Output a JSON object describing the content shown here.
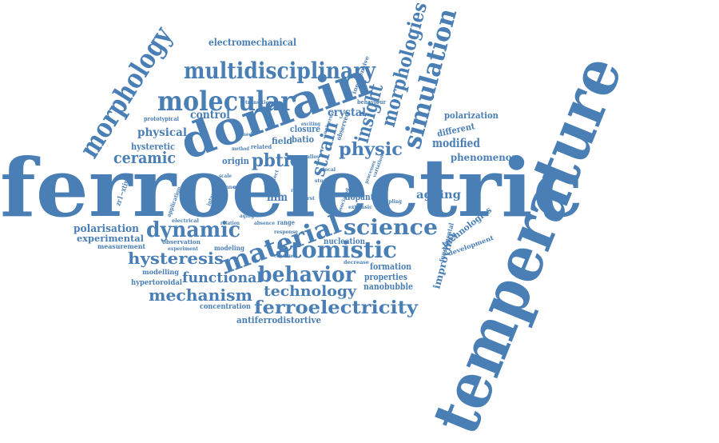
{
  "colors": {
    "word": "#4a7fb6",
    "background": "#ffffff"
  },
  "words": {
    "ferroelectric": "ferroelectric",
    "temperature": "temperature",
    "domain": "domain",
    "molecular": "molecular",
    "multidisciplinary": "multidisciplinary",
    "morphology": "morphology",
    "simulation": "simulation",
    "morphologies": "morphologies",
    "insight": "insight",
    "strain": "strain",
    "physic": "physic",
    "material": "material",
    "dynamic": "dynamic",
    "atomistic": "atomistic",
    "science": "science",
    "behavior": "behavior",
    "technology": "technology",
    "ferroelectricity": "ferroelectricity",
    "mechanism": "mechanism",
    "functional": "functional",
    "hysteresis": "hysteresis",
    "ceramic": "ceramic",
    "pbtio": "pbtio",
    "physical": "physical",
    "control": "control",
    "electromechanical": "electromechanical",
    "polarization": "polarization",
    "different": "different",
    "modified": "modified",
    "phenomenon": "phenomenon",
    "ageing": "ageing",
    "dopant": "dopant",
    "film": "film",
    "field": "field",
    "crystal": "crystal",
    "closure": "closure",
    "batio": "batio",
    "hysteretic": "hysteretic",
    "origin": "origin",
    "polarisation": "polarisation",
    "experimental": "experimental",
    "measurement": "measurement",
    "modelling": "modelling",
    "hypertoroidal": "hypertoroidal",
    "concentration": "concentration",
    "antiferrodistortive": "antiferrodistortive",
    "nanobubble": "nanobubble",
    "properties": "properties",
    "formation": "formation",
    "nucleation": "nucleation",
    "improving": "improving",
    "technologies": "technologies",
    "development": "development",
    "fundamental": "fundamental",
    "prototypical": "prototypical",
    "zr1_xtixo": "zr1−xtixo",
    "inexpensive": "inexpensive",
    "observed": "observed",
    "behaviour": "behaviour",
    "transition": "transition",
    "observation": "observation",
    "modeling": "modeling",
    "experiment": "experiment",
    "range": "range",
    "response": "response",
    "electrical": "electrical",
    "application": "application",
    "interaction": "interaction",
    "related": "related",
    "absence": "absence",
    "decrease": "decrease",
    "construct": "construct",
    "coupling": "coupling",
    "extrinsic": "extrinsic",
    "processes": "processes",
    "variation": "variation",
    "exciting": "exciting",
    "universal": "universal",
    "novel": "novel",
    "method": "method",
    "vacancy": "vacancy",
    "rotation": "rotation",
    "associated": "associated",
    "effect": "effect",
    "study": "study",
    "result": "result",
    "shed": "shed",
    "alloy": "alloy",
    "aging": "aging",
    "model": "model",
    "first": "first",
    "local": "local",
    "scale": "scale"
  }
}
